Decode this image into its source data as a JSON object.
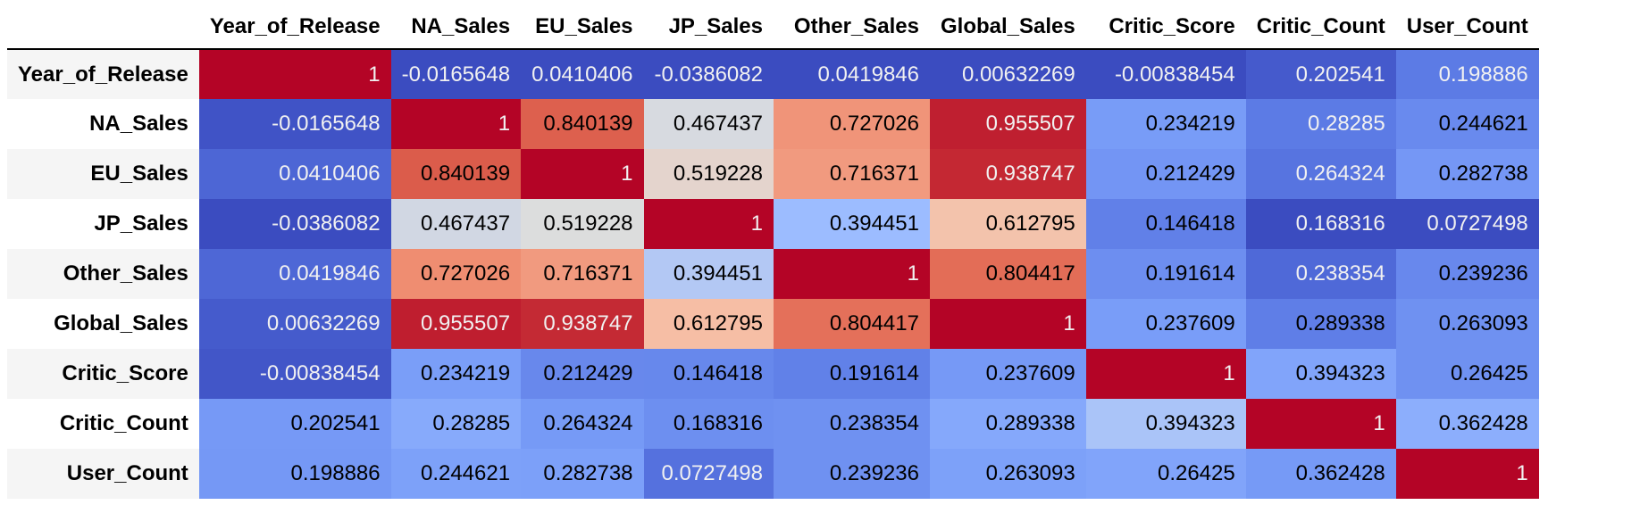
{
  "chart_data": {
    "type": "heatmap",
    "title": "",
    "colormap": "coolwarm",
    "color_scale": "per-column min to max",
    "colors": {
      "low": "#3b4cc0",
      "mid": "#dddddd",
      "high": "#b40426"
    },
    "columns": [
      "Year_of_Release",
      "NA_Sales",
      "EU_Sales",
      "JP_Sales",
      "Other_Sales",
      "Global_Sales",
      "Critic_Score",
      "Critic_Count",
      "User_Count"
    ],
    "rows": [
      "Year_of_Release",
      "NA_Sales",
      "EU_Sales",
      "JP_Sales",
      "Other_Sales",
      "Global_Sales",
      "Critic_Score",
      "Critic_Count",
      "User_Count"
    ],
    "values": [
      [
        "1",
        "-0.0165648",
        "0.0410406",
        "-0.0386082",
        "0.0419846",
        "0.00632269",
        "-0.00838454",
        "0.202541",
        "0.198886"
      ],
      [
        "-0.0165648",
        "1",
        "0.840139",
        "0.467437",
        "0.727026",
        "0.955507",
        "0.234219",
        "0.28285",
        "0.244621"
      ],
      [
        "0.0410406",
        "0.840139",
        "1",
        "0.519228",
        "0.716371",
        "0.938747",
        "0.212429",
        "0.264324",
        "0.282738"
      ],
      [
        "-0.0386082",
        "0.467437",
        "0.519228",
        "1",
        "0.394451",
        "0.612795",
        "0.146418",
        "0.168316",
        "0.0727498"
      ],
      [
        "0.0419846",
        "0.727026",
        "0.716371",
        "0.394451",
        "1",
        "0.804417",
        "0.191614",
        "0.238354",
        "0.239236"
      ],
      [
        "0.00632269",
        "0.955507",
        "0.938747",
        "0.612795",
        "0.804417",
        "1",
        "0.237609",
        "0.289338",
        "0.263093"
      ],
      [
        "-0.00838454",
        "0.234219",
        "0.212429",
        "0.146418",
        "0.191614",
        "0.237609",
        "1",
        "0.394323",
        "0.26425"
      ],
      [
        "0.202541",
        "0.28285",
        "0.264324",
        "0.168316",
        "0.238354",
        "0.289338",
        "0.394323",
        "1",
        "0.362428"
      ],
      [
        "0.198886",
        "0.244621",
        "0.282738",
        "0.0727498",
        "0.239236",
        "0.263093",
        "0.26425",
        "0.362428",
        "1"
      ]
    ]
  }
}
